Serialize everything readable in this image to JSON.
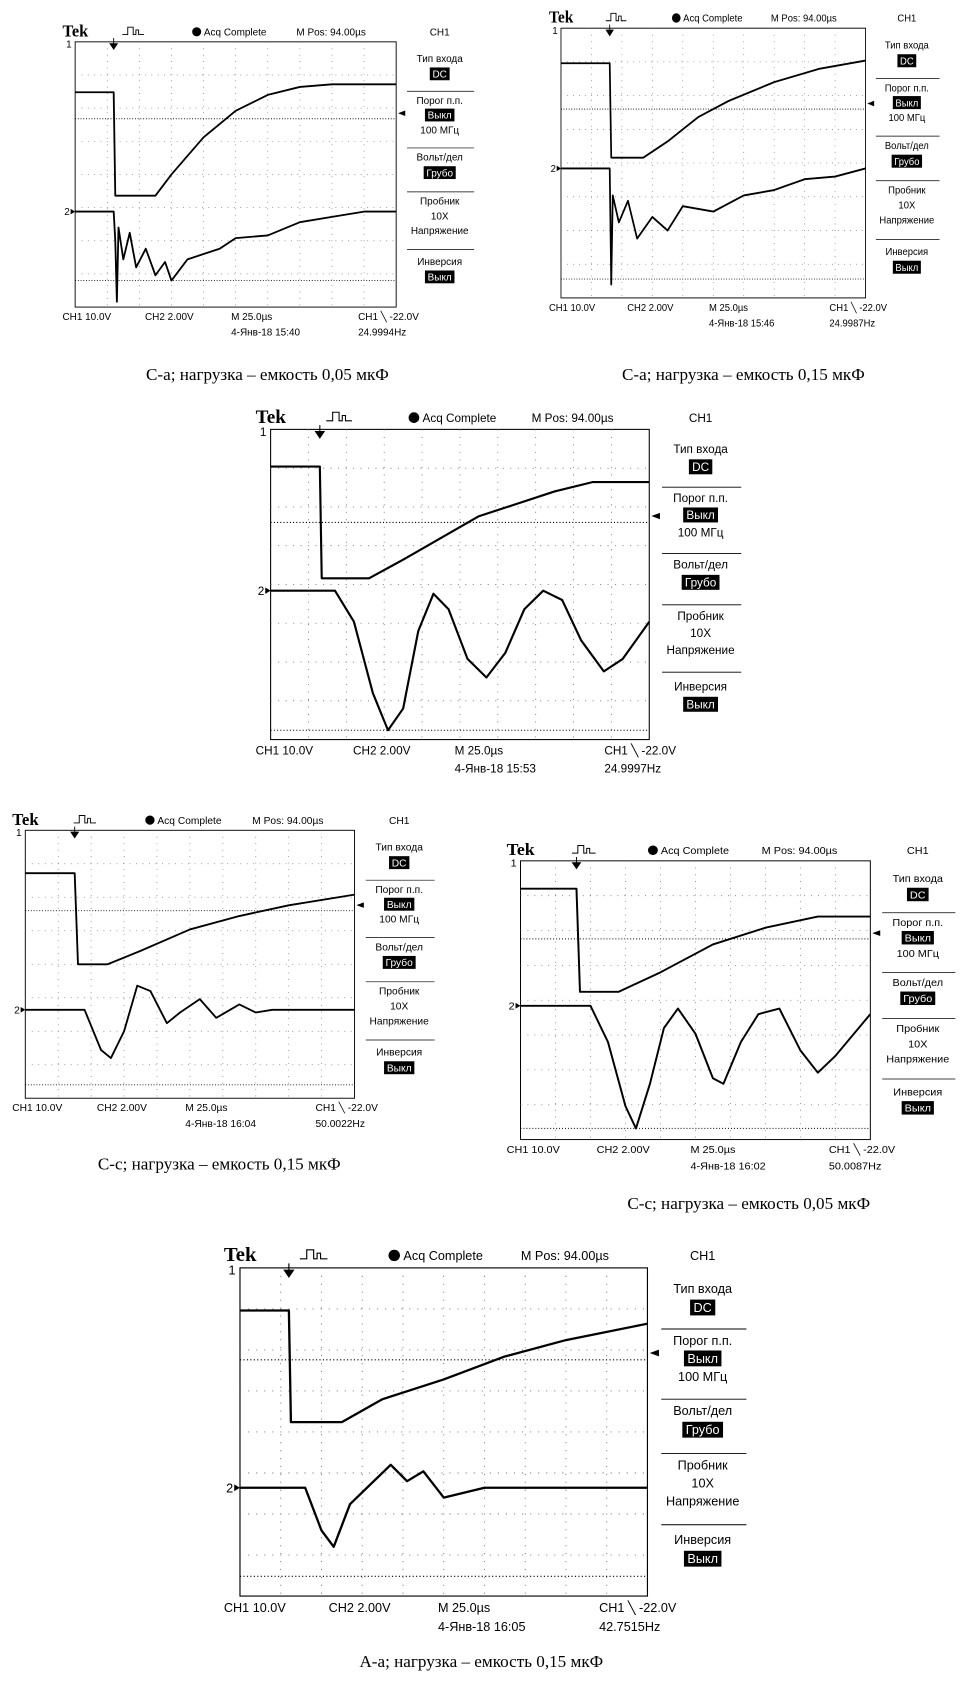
{
  "panels": [
    {
      "header": {
        "brand": "Tek",
        "status": "Acq Complete",
        "position": "M Pos: 94.00µs",
        "channel": "CH1"
      },
      "markers": {
        "ch1": "1",
        "ch2": "2"
      },
      "menu": [
        "Тип входа",
        "DC",
        "Порог п.п.",
        "Выкл",
        "100 МГц",
        "Вольт/дел",
        "Грубо",
        "Пробник",
        "10X",
        "Напряжение",
        "Инверсия",
        "Выкл"
      ],
      "footer": {
        "ch1": "CH1  10.0V",
        "ch2": "CH2  2.00V",
        "timebase": "M 25.0µs",
        "trigger": "CH1 ╲ -22.0V",
        "date": "4-Янв-18 15:40",
        "frequency": "24.9994Hz"
      },
      "caption": "С-а; нагрузка – емкость 0,05 мкФ"
    },
    {
      "header": {
        "brand": "Tek",
        "status": "Acq Complete",
        "position": "M Pos: 94.00µs",
        "channel": "CH1"
      },
      "markers": {
        "ch1": "1",
        "ch2": "2"
      },
      "menu": [
        "Тип входа",
        "DC",
        "Порог п.п.",
        "Выкл",
        "100 МГц",
        "Вольт/дел",
        "Грубо",
        "Пробник",
        "10X",
        "Напряжение",
        "Инверсия",
        "Выкл"
      ],
      "footer": {
        "ch1": "CH1  10.0V",
        "ch2": "CH2  2.00V",
        "timebase": "M 25.0µs",
        "trigger": "CH1 ╲ -22.0V",
        "date": "4-Янв-18 15:46",
        "frequency": "24.9987Hz"
      },
      "caption": "С-а; нагрузка – емкость 0,15 мкФ"
    },
    {
      "header": {
        "brand": "Tek",
        "status": "Acq Complete",
        "position": "M Pos: 94.00µs",
        "channel": "CH1"
      },
      "markers": {
        "ch1": "1",
        "ch2": "2"
      },
      "menu": [
        "Тип входа",
        "DC",
        "Порог п.п.",
        "Выкл",
        "100 МГц",
        "Вольт/дел",
        "Грубо",
        "Пробник",
        "10X",
        "Напряжение",
        "Инверсия",
        "Выкл"
      ],
      "footer": {
        "ch1": "CH1  10.0V",
        "ch2": "CH2  2.00V",
        "timebase": "M 25.0µs",
        "trigger": "CH1 ╲ -22.0V",
        "date": "4-Янв-18 15:53",
        "frequency": "24.9997Hz"
      }
    },
    {
      "header": {
        "brand": "Tek",
        "status": "Acq Complete",
        "position": "M Pos: 94.00µs",
        "channel": "CH1"
      },
      "markers": {
        "ch1": "1",
        "ch2": "2"
      },
      "menu": [
        "Тип входа",
        "DC",
        "Порог п.п.",
        "Выкл",
        "100 МГц",
        "Вольт/дел",
        "Грубо",
        "Пробник",
        "10X",
        "Напряжение",
        "Инверсия",
        "Выкл"
      ],
      "footer": {
        "ch1": "CH1  10.0V",
        "ch2": "CH2  2.00V",
        "timebase": "M 25.0µs",
        "trigger": "CH1 ╲ -22.0V",
        "date": "4-Янв-18 16:04",
        "frequency": "50.0022Hz"
      },
      "caption": "С-с; нагрузка – емкость 0,15 мкФ"
    },
    {
      "header": {
        "brand": "Tek",
        "status": "Acq Complete",
        "position": "M Pos: 94.00µs",
        "channel": "CH1"
      },
      "markers": {
        "ch1": "1",
        "ch2": "2"
      },
      "menu": [
        "Тип входа",
        "DC",
        "Порог п.п.",
        "Выкл",
        "100 МГц",
        "Вольт/дел",
        "Грубо",
        "Пробник",
        "10X",
        "Напряжение",
        "Инверсия",
        "Выкл"
      ],
      "footer": {
        "ch1": "CH1  10.0V",
        "ch2": "CH2  2.00V",
        "timebase": "M 25.0µs",
        "trigger": "CH1 ╲ -22.0V",
        "date": "4-Янв-18 16:02",
        "frequency": "50.0087Hz"
      },
      "caption": "С-с; нагрузка – емкость 0,05 мкФ"
    },
    {
      "header": {
        "brand": "Tek",
        "status": "Acq Complete",
        "position": "M Pos: 94.00µs",
        "channel": "CH1"
      },
      "markers": {
        "ch1": "1",
        "ch2": "2"
      },
      "menu": [
        "Тип входа",
        "DC",
        "Порог п.п.",
        "Выкл",
        "100 МГц",
        "Вольт/дел",
        "Грубо",
        "Пробник",
        "10X",
        "Напряжение",
        "Инверсия",
        "Выкл"
      ],
      "footer": {
        "ch1": "CH1  10.0V",
        "ch2": "CH2  2.00V",
        "timebase": "M 25.0µs",
        "trigger": "CH1 ╲ -22.0V",
        "date": "4-Янв-18 16:05",
        "frequency": "42.7515Hz"
      },
      "caption": "А-а; нагрузка – емкость 0,15 мкФ"
    }
  ]
}
